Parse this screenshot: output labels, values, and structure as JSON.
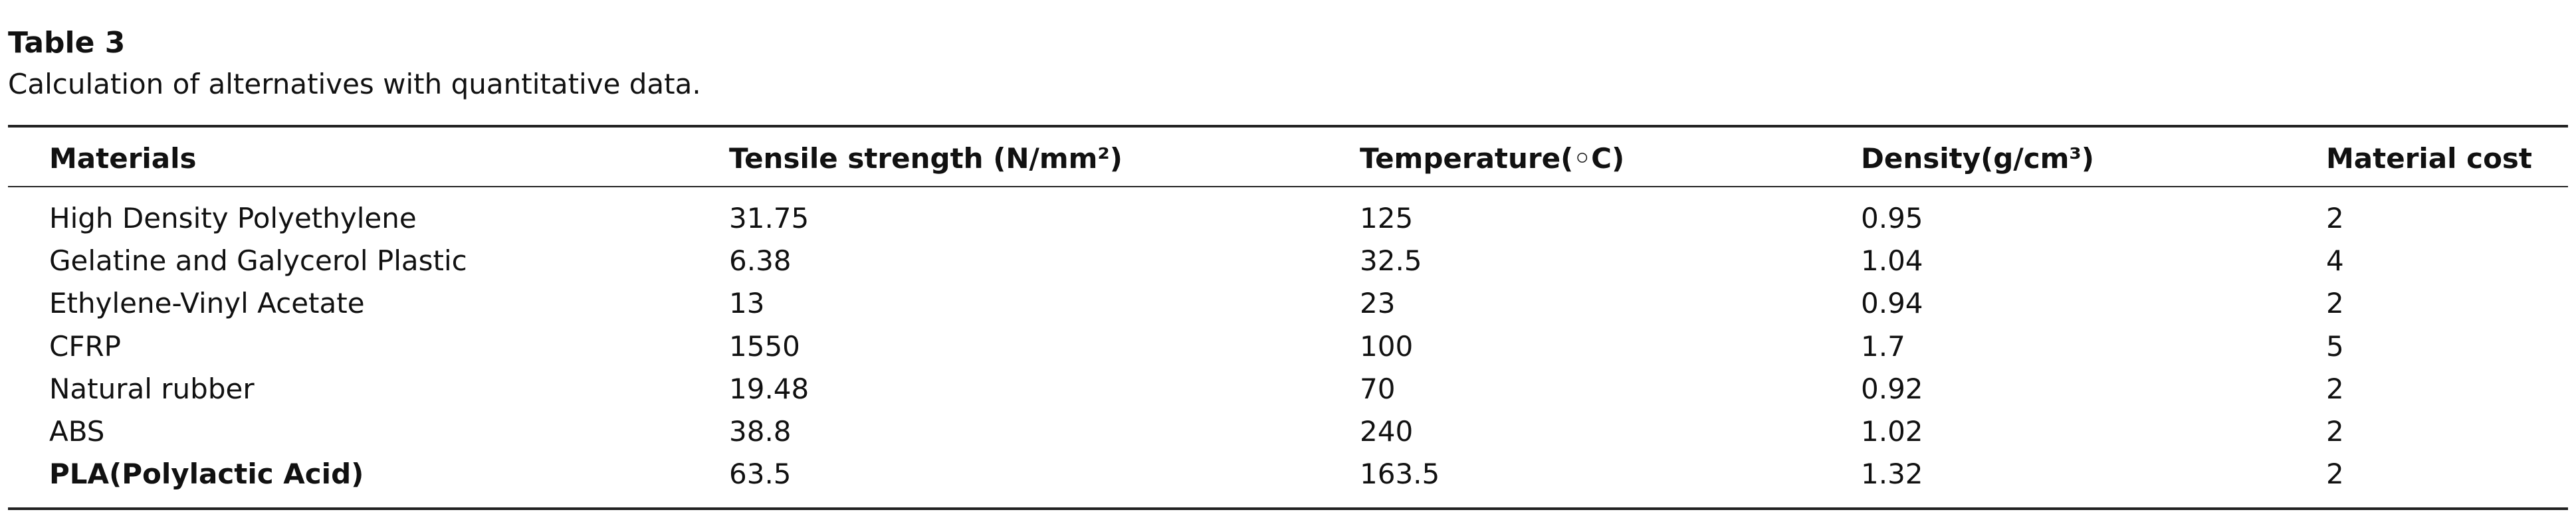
{
  "header": {
    "title": "Table 3",
    "caption": "Calculation of alternatives with quantitative data."
  },
  "table": {
    "columns": [
      "Materials",
      "Tensile strength (N/mm²)",
      "Temperature(◦C)",
      "Density(g/cm³)",
      "Material cost"
    ],
    "rows": [
      [
        "High Density Polyethylene",
        "31.75",
        "125",
        "0.95",
        "2"
      ],
      [
        "Gelatine and Galycerol Plastic",
        "6.38",
        "32.5",
        "1.04",
        "4"
      ],
      [
        "Ethylene-Vinyl Acetate",
        "13",
        "23",
        "0.94",
        "2"
      ],
      [
        "CFRP",
        "1550",
        "100",
        "1.7",
        "5"
      ],
      [
        "Natural rubber",
        "19.48",
        "70",
        "0.92",
        "2"
      ],
      [
        "ABS",
        "38.8",
        "240",
        "1.02",
        "2"
      ],
      [
        "PLA(Polylactic Acid)",
        "63.5",
        "163.5",
        "1.32",
        "2"
      ]
    ]
  }
}
